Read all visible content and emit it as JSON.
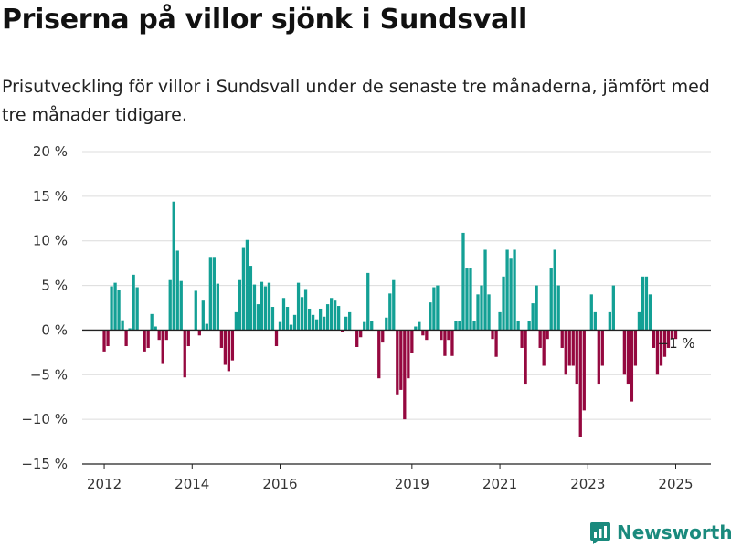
{
  "header": {
    "title": "Priserna på villor sjönk i Sundsvall",
    "subtitle": "Prisutveckling för villor i Sundsvall under de senaste tre månaderna, jämfört med tre månader tidigare."
  },
  "brand": {
    "name": "Newsworthy",
    "color": "#1a8a7d"
  },
  "chart_data": {
    "type": "bar",
    "title": "Priserna på villor sjönk i Sundsvall",
    "subtitle": "Prisutveckling för villor i Sundsvall under de senaste tre månaderna, jämfört med tre månader tidigare.",
    "xlabel": "",
    "ylabel": "",
    "ylim": [
      -15,
      20
    ],
    "yticks": [
      20,
      15,
      10,
      5,
      0,
      -5,
      -10,
      -15
    ],
    "ytick_labels": [
      "20 %",
      "15 %",
      "10 %",
      "5 %",
      "0 %",
      "−5 %",
      "−10 %",
      "−15 %"
    ],
    "xticks": [
      2012,
      2014,
      2016,
      2019,
      2021,
      2023,
      2025
    ],
    "xtick_labels": [
      "2012",
      "2014",
      "2016",
      "2019",
      "2021",
      "2023",
      "2025"
    ],
    "grid": true,
    "colors": {
      "positive": "#13a095",
      "negative": "#95083f",
      "grid": "#dcdcdc",
      "axis": "#222222"
    },
    "annotation": {
      "text": "−1 %",
      "value": -1
    },
    "x": [
      2012.0,
      2012.083,
      2012.167,
      2012.25,
      2012.333,
      2012.417,
      2012.5,
      2012.583,
      2012.667,
      2012.75,
      2012.833,
      2012.917,
      2013.0,
      2013.083,
      2013.167,
      2013.25,
      2013.333,
      2013.417,
      2013.5,
      2013.583,
      2013.667,
      2013.75,
      2013.833,
      2013.917,
      2014.0,
      2014.083,
      2014.167,
      2014.25,
      2014.333,
      2014.417,
      2014.5,
      2014.583,
      2014.667,
      2014.75,
      2014.833,
      2014.917,
      2015.0,
      2015.083,
      2015.167,
      2015.25,
      2015.333,
      2015.417,
      2015.5,
      2015.583,
      2015.667,
      2015.75,
      2015.833,
      2015.917,
      2016.0,
      2016.083,
      2016.167,
      2016.25,
      2016.333,
      2016.417,
      2016.5,
      2016.583,
      2016.667,
      2016.75,
      2016.833,
      2016.917,
      2017.0,
      2017.083,
      2017.167,
      2017.25,
      2017.333,
      2017.417,
      2017.5,
      2017.583,
      2017.667,
      2017.75,
      2017.833,
      2017.917,
      2018.0,
      2018.083,
      2018.167,
      2018.25,
      2018.333,
      2018.417,
      2018.5,
      2018.583,
      2018.667,
      2018.75,
      2018.833,
      2018.917,
      2019.0,
      2019.083,
      2019.167,
      2019.25,
      2019.333,
      2019.417,
      2019.5,
      2019.583,
      2019.667,
      2019.75,
      2019.833,
      2019.917,
      2020.0,
      2020.083,
      2020.167,
      2020.25,
      2020.333,
      2020.417,
      2020.5,
      2020.583,
      2020.667,
      2020.75,
      2020.833,
      2020.917,
      2021.0,
      2021.083,
      2021.167,
      2021.25,
      2021.333,
      2021.417,
      2021.5,
      2021.583,
      2021.667,
      2021.75,
      2021.833,
      2021.917,
      2022.0,
      2022.083,
      2022.167,
      2022.25,
      2022.333,
      2022.417,
      2022.5,
      2022.583,
      2022.667,
      2022.75,
      2022.833,
      2022.917,
      2023.0,
      2023.083,
      2023.167,
      2023.25,
      2023.333,
      2023.417,
      2023.5,
      2023.583,
      2023.667,
      2023.75,
      2023.833,
      2023.917,
      2024.0,
      2024.083,
      2024.167,
      2024.25,
      2024.333,
      2024.417,
      2024.5,
      2024.583,
      2024.667,
      2024.75,
      2024.833,
      2024.917,
      2025.0
    ],
    "values": [
      -2.4,
      -1.8,
      4.9,
      5.3,
      4.5,
      1.1,
      -1.8,
      0.2,
      6.2,
      4.8,
      0.0,
      -2.4,
      -2.0,
      1.8,
      0.4,
      -1.1,
      -3.7,
      -1.1,
      5.6,
      14.4,
      8.9,
      5.5,
      -5.3,
      -1.8,
      0.0,
      4.4,
      -0.6,
      3.3,
      0.7,
      8.2,
      8.2,
      5.2,
      -2.0,
      -3.9,
      -4.6,
      -3.4,
      2.0,
      5.6,
      9.3,
      10.1,
      7.2,
      5.1,
      2.9,
      5.4,
      4.9,
      5.3,
      2.6,
      -1.8,
      0.9,
      3.6,
      2.6,
      0.6,
      1.7,
      5.3,
      3.7,
      4.6,
      2.4,
      1.7,
      1.2,
      2.4,
      1.5,
      2.9,
      3.6,
      3.3,
      2.7,
      -0.2,
      1.5,
      2.0,
      0.0,
      -1.9,
      -0.8,
      0.9,
      6.4,
      1.0,
      0.0,
      -5.4,
      -1.4,
      1.4,
      4.1,
      5.6,
      -7.2,
      -6.7,
      -10.0,
      -5.4,
      -2.6,
      0.4,
      0.9,
      -0.6,
      -1.1,
      3.1,
      4.8,
      5.0,
      -1.1,
      -2.9,
      -1.1,
      -2.9,
      1.0,
      1.0,
      10.9,
      7.0,
      7.0,
      1.0,
      4.0,
      5.0,
      9.0,
      4.0,
      -1.0,
      -3.0,
      2.0,
      6.0,
      9.0,
      8.0,
      9.0,
      1.0,
      -2.0,
      -6.0,
      1.0,
      3.0,
      5.0,
      -2.0,
      -4.0,
      -1.0,
      7.0,
      9.0,
      5.0,
      -2.0,
      -5.0,
      -4.0,
      -4.0,
      -6.0,
      -12.0,
      -9.0,
      0.0,
      4.0,
      2.0,
      -6.0,
      -4.0,
      0.0,
      2.0,
      5.0,
      0.0,
      0.0,
      -5.0,
      -6.0,
      -8.0,
      -4.0,
      2.0,
      6.0,
      6.0,
      4.0,
      -2.0,
      -5.0,
      -4.0,
      -3.0,
      -2.0,
      -1.0,
      -1.0
    ]
  }
}
